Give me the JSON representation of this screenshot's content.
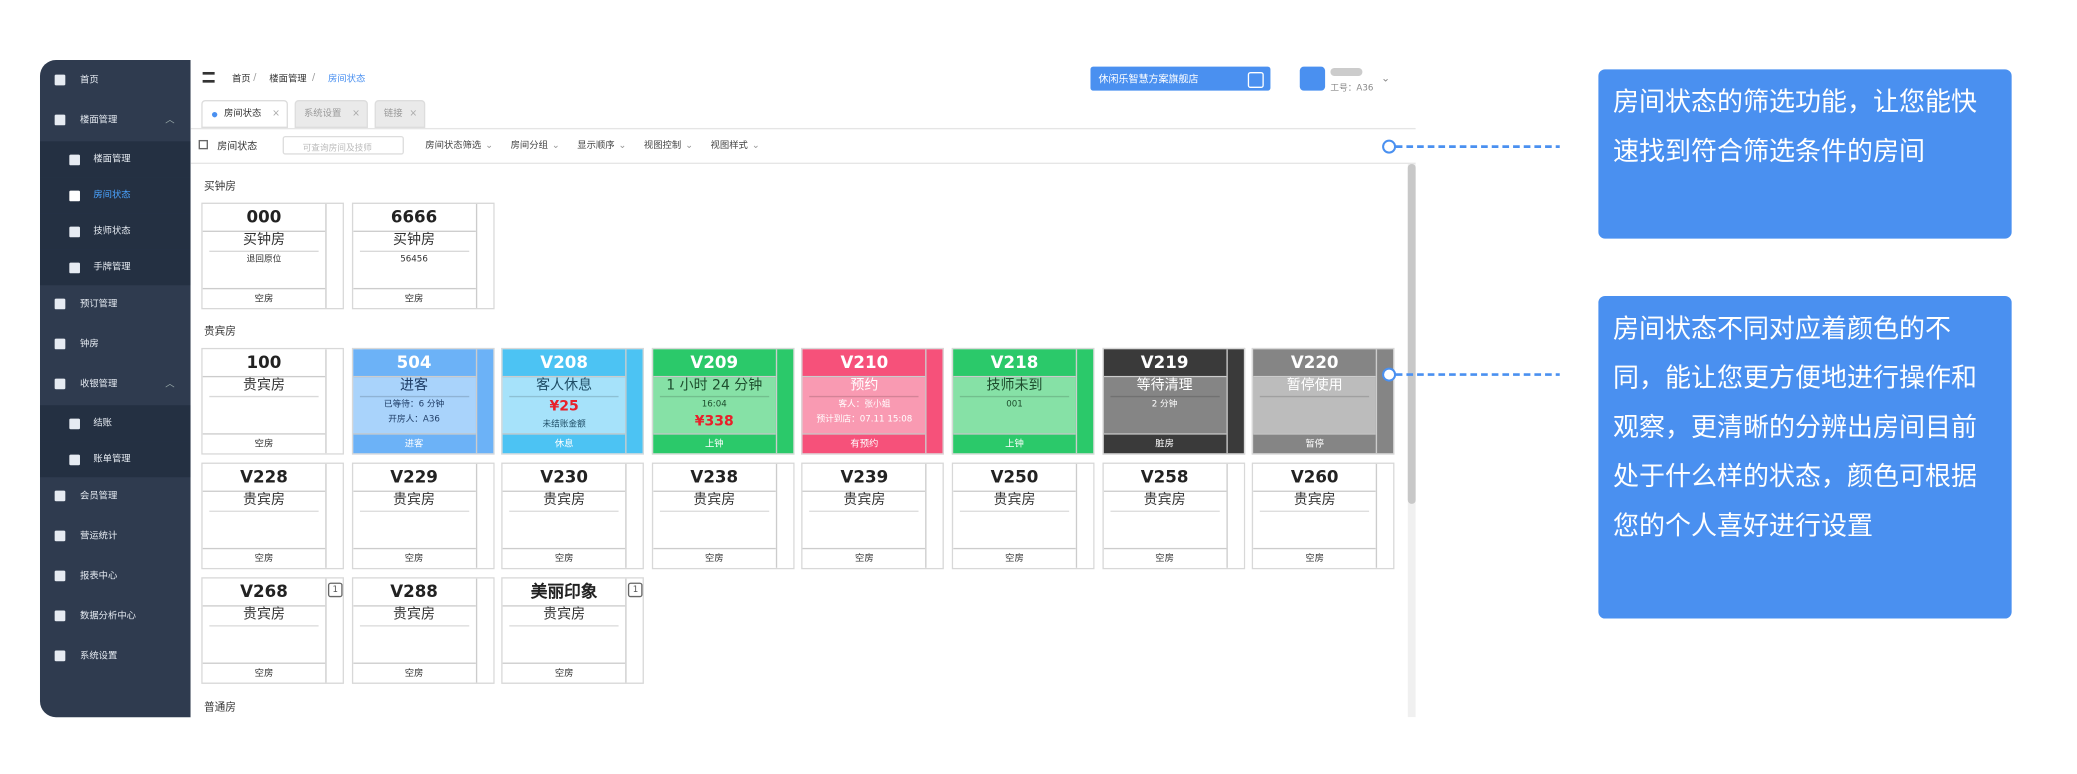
{
  "sidebar": {
    "items": [
      {
        "label": "首页"
      },
      {
        "label": "楼面管理",
        "sub": [
          "楼面管理",
          "房间状态",
          "技师状态",
          "手牌管理"
        ]
      },
      {
        "label": "预订管理"
      },
      {
        "label": "钟房"
      },
      {
        "label": "收银管理",
        "sub": [
          "结账",
          "账单管理"
        ]
      },
      {
        "label": "会员管理"
      },
      {
        "label": "营运统计"
      },
      {
        "label": "报表中心"
      },
      {
        "label": "数据分析中心"
      },
      {
        "label": "系统设置"
      }
    ],
    "active": "房间状态"
  },
  "header": {
    "breadcrumb": [
      "首页",
      "楼面管理",
      "房间状态"
    ],
    "store": "休闲乐智慧方案旗舰店",
    "user": "工号：A36"
  },
  "tabs": [
    "房间状态",
    "系统设置",
    "链接"
  ],
  "filter": {
    "title": "房间状态",
    "placeholder": "可查询房间及技师",
    "menus": [
      "房间状态筛选",
      "房间分组",
      "显示顺序",
      "视图控制",
      "视图样式"
    ]
  },
  "sections": [
    {
      "title": "买钟房",
      "rooms": [
        {
          "number": "000",
          "lines": [
            "买钟房",
            "退回原位"
          ],
          "footer": "空房",
          "head": "#ffffff",
          "body": "#ffffff",
          "text": "#333333"
        },
        {
          "number": "6666",
          "lines": [
            "买钟房",
            "56456"
          ],
          "footer": "空房",
          "head": "#ffffff",
          "body": "#ffffff",
          "text": "#333333"
        }
      ]
    },
    {
      "title": "贵宾房",
      "rooms": [
        {
          "number": "100",
          "lines": [
            "贵宾房"
          ],
          "footer": "空房",
          "head": "#ffffff",
          "body": "#ffffff",
          "text": "#333333"
        },
        {
          "number": "504",
          "lines": [
            "进客",
            "已等待：6 分钟",
            "开房人：A36"
          ],
          "footer": "进客",
          "head": "#6cb2f7",
          "body": "#a9d3fb",
          "text": "#1f3d66"
        },
        {
          "number": "V208",
          "lines": [
            "客人休息",
            "¥25",
            "未结账金额"
          ],
          "footer": "休息",
          "head": "#4cc3f3",
          "body": "#a6e2fa",
          "text": "#1f4d66"
        },
        {
          "number": "V209",
          "lines": [
            "1 小时 24 分钟",
            "16:04",
            "¥338"
          ],
          "footer": "上钟",
          "head": "#2bc96a",
          "body": "#86e1a6",
          "text": "#1d4d2d"
        },
        {
          "number": "V210",
          "lines": [
            "预约",
            "客人：张小姐",
            "预计到店：07.11 15:08"
          ],
          "footer": "有预约",
          "head": "#f6517a",
          "body": "#f99ab2",
          "text": "#ffffff"
        },
        {
          "number": "V218",
          "lines": [
            "技师未到",
            "001"
          ],
          "footer": "上钟",
          "head": "#2bc96a",
          "body": "#86e1a6",
          "text": "#1d4d2d"
        },
        {
          "number": "V219",
          "lines": [
            "等待清理",
            "2 分钟"
          ],
          "footer": "脏房",
          "head": "#3a3a3a",
          "body": "#858585",
          "text": "#ffffff"
        },
        {
          "number": "V220",
          "lines": [
            "暂停使用"
          ],
          "footer": "暂停",
          "head": "#858585",
          "body": "#bcbcbc",
          "text": "#ffffff"
        },
        {
          "number": "V228",
          "lines": [
            "贵宾房"
          ],
          "footer": "空房",
          "head": "#ffffff",
          "body": "#ffffff",
          "text": "#333333"
        },
        {
          "number": "V229",
          "lines": [
            "贵宾房"
          ],
          "footer": "空房",
          "head": "#ffffff",
          "body": "#ffffff",
          "text": "#333333"
        },
        {
          "number": "V230",
          "lines": [
            "贵宾房"
          ],
          "footer": "空房",
          "head": "#ffffff",
          "body": "#ffffff",
          "text": "#333333"
        },
        {
          "number": "V238",
          "lines": [
            "贵宾房"
          ],
          "footer": "空房",
          "head": "#ffffff",
          "body": "#ffffff",
          "text": "#333333"
        },
        {
          "number": "V239",
          "lines": [
            "贵宾房"
          ],
          "footer": "空房",
          "head": "#ffffff",
          "body": "#ffffff",
          "text": "#333333"
        },
        {
          "number": "V250",
          "lines": [
            "贵宾房"
          ],
          "footer": "空房",
          "head": "#ffffff",
          "body": "#ffffff",
          "text": "#333333"
        },
        {
          "number": "V258",
          "lines": [
            "贵宾房"
          ],
          "footer": "空房",
          "head": "#ffffff",
          "body": "#ffffff",
          "text": "#333333"
        },
        {
          "number": "V260",
          "lines": [
            "贵宾房"
          ],
          "footer": "空房",
          "head": "#ffffff",
          "body": "#ffffff",
          "text": "#333333"
        },
        {
          "number": "V268",
          "lines": [
            "贵宾房"
          ],
          "footer": "空房",
          "badge": "1",
          "head": "#ffffff",
          "body": "#ffffff",
          "text": "#333333"
        },
        {
          "number": "V288",
          "lines": [
            "贵宾房"
          ],
          "footer": "空房",
          "head": "#ffffff",
          "body": "#ffffff",
          "text": "#333333"
        },
        {
          "number": "美丽印象",
          "lines": [
            "贵宾房"
          ],
          "footer": "空房",
          "badge": "1",
          "head": "#ffffff",
          "body": "#ffffff",
          "text": "#333333"
        }
      ]
    },
    {
      "title": "普通房",
      "rooms": []
    }
  ],
  "callouts": [
    "房间状态的筛选功能，让您能快速找到符合筛选条件的房间",
    "房间状态不同对应着颜色的不同，能让您更方便地进行操作和观察，更清晰的分辨出房间目前处于什么样的状态，颜色可根据您的个人喜好进行设置"
  ]
}
